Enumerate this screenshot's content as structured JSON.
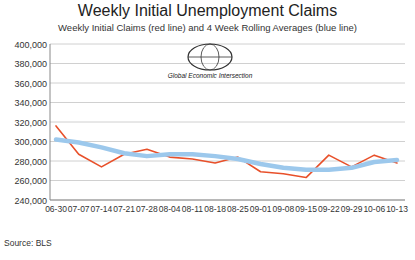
{
  "chart_data": {
    "type": "line",
    "title": "Weekly Initial Unemployment Claims",
    "subtitle": "Weekly Initial Claims (red line) and 4 Week Rolling Averages (blue line)",
    "annotations": [
      "Global Economic Intersection"
    ],
    "source": "Source: BLS",
    "categories": [
      "06-30",
      "07-07",
      "07-14",
      "07-21",
      "07-28",
      "08-04",
      "08-11",
      "08-18",
      "08-25",
      "09-01",
      "09-08",
      "09-15",
      "09-22",
      "09-29",
      "10-06",
      "10-13"
    ],
    "series": [
      {
        "color": "#e8502a",
        "values": [
          316000,
          287000,
          274000,
          287000,
          292000,
          284000,
          282000,
          278000,
          284000,
          269000,
          267000,
          263000,
          286000,
          274000,
          286000,
          278000
        ]
      },
      {
        "color": "#9cc8ec",
        "values": [
          302000,
          299000,
          294000,
          288000,
          285000,
          287000,
          287000,
          285000,
          282000,
          277000,
          273000,
          271000,
          271000,
          273000,
          279000,
          281000
        ]
      }
    ],
    "ylim": [
      240000,
      400000
    ],
    "yticks": [
      {
        "value": 240000,
        "label": "240,000"
      },
      {
        "value": 260000,
        "label": "260,000"
      },
      {
        "value": 280000,
        "label": "280,000"
      },
      {
        "value": 300000,
        "label": "300,000"
      },
      {
        "value": 320000,
        "label": "320,000"
      },
      {
        "value": 340000,
        "label": "340,000"
      },
      {
        "value": 360000,
        "label": "360,000"
      },
      {
        "value": 380000,
        "label": "380,000"
      },
      {
        "value": 400000,
        "label": "400,000"
      }
    ],
    "grid": true
  }
}
